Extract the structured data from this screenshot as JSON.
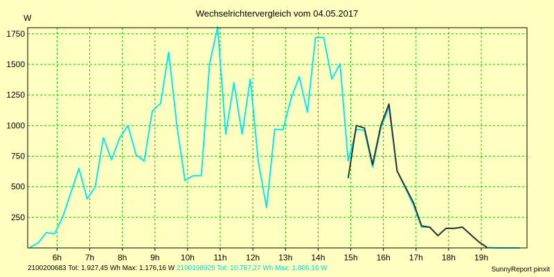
{
  "chart_data": {
    "type": "line",
    "title": "Wechselrichtervergleich vom 04.05.2017",
    "ylabel": "W",
    "xlim": [
      5.1,
      20.4
    ],
    "ylim": [
      0,
      1800
    ],
    "yticks": [
      250,
      500,
      750,
      1000,
      1250,
      1500,
      1750
    ],
    "xticks": [
      {
        "t": 6,
        "label": "6h"
      },
      {
        "t": 7,
        "label": "7h"
      },
      {
        "t": 8,
        "label": "8h"
      },
      {
        "t": 9,
        "label": "9h"
      },
      {
        "t": 10,
        "label": "10h"
      },
      {
        "t": 11,
        "label": "11h"
      },
      {
        "t": 12,
        "label": "12h"
      },
      {
        "t": 13,
        "label": "13h"
      },
      {
        "t": 14,
        "label": "14h"
      },
      {
        "t": 15,
        "label": "15h"
      },
      {
        "t": 16,
        "label": "16h"
      },
      {
        "t": 17,
        "label": "17h"
      },
      {
        "t": 18,
        "label": "18h"
      },
      {
        "t": 19,
        "label": "19h"
      }
    ],
    "grid": true,
    "series": [
      {
        "name": "2100200683",
        "color": "#303030",
        "x": [
          14.92,
          15.17,
          15.42,
          15.67,
          15.92,
          16.17,
          16.42,
          16.67,
          16.92,
          17.17,
          17.42,
          17.67,
          17.92,
          18.17,
          18.42,
          18.67,
          18.92,
          19.17
        ],
        "y": [
          570,
          1000,
          980,
          680,
          1000,
          1176,
          630,
          500,
          370,
          180,
          170,
          100,
          160,
          160,
          170,
          110,
          50,
          5
        ]
      },
      {
        "name": "2100198925",
        "color": "#00e8f8",
        "x": [
          5.17,
          5.42,
          5.67,
          5.92,
          6.17,
          6.42,
          6.67,
          6.92,
          7.17,
          7.42,
          7.67,
          7.92,
          8.17,
          8.42,
          8.67,
          8.92,
          9.17,
          9.42,
          9.67,
          9.92,
          10.17,
          10.42,
          10.67,
          10.92,
          11.17,
          11.42,
          11.67,
          11.92,
          12.17,
          12.42,
          12.67,
          12.92,
          13.17,
          13.42,
          13.67,
          13.92,
          14.17,
          14.42,
          14.67,
          14.92,
          15.17,
          15.42,
          15.67,
          15.92,
          16.17,
          16.42,
          16.67,
          16.92,
          17.17,
          17.42,
          17.67,
          17.92,
          18.17,
          18.42,
          18.67,
          18.92,
          19.17,
          19.42,
          19.67,
          19.92,
          20.17
        ],
        "y": [
          5,
          40,
          125,
          115,
          250,
          450,
          650,
          400,
          500,
          900,
          720,
          900,
          1000,
          760,
          710,
          1120,
          1180,
          1600,
          1000,
          550,
          590,
          590,
          1500,
          1806,
          930,
          1350,
          930,
          1380,
          700,
          330,
          970,
          965,
          1220,
          1400,
          1110,
          1720,
          1720,
          1380,
          1505,
          710,
          970,
          960,
          660,
          980,
          1150,
          630,
          490,
          350,
          170,
          170,
          100,
          160,
          160,
          170,
          110,
          50,
          5,
          0,
          0,
          0,
          0
        ]
      }
    ]
  },
  "footer": {
    "series1": "2100200683 Tot: 1.927,45 Wh Max: 1.176,16 W",
    "series2": "2100198925 Tot: 10.787,27 Wh Max: 1.806,16 W",
    "credit": "SunnyReport pinxit"
  },
  "colors": {
    "background": "#ffffc0",
    "grid": "#00c000",
    "axis": "#000000"
  }
}
